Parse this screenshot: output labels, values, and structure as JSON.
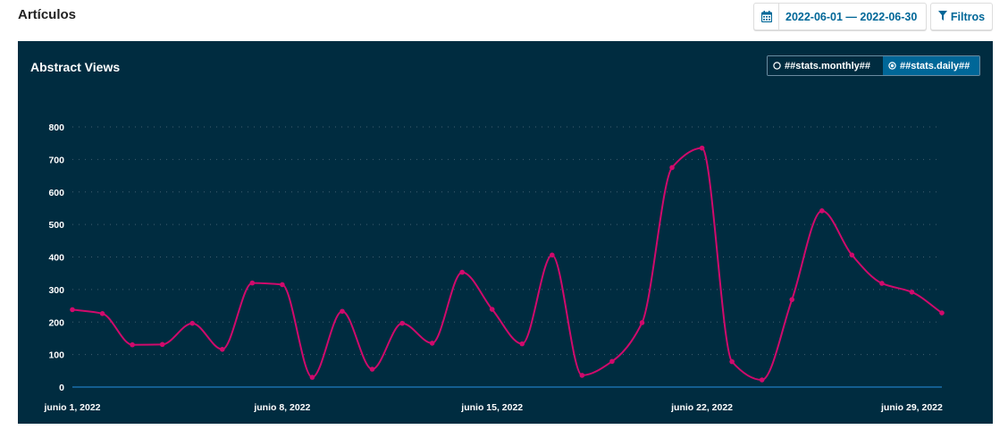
{
  "header": {
    "title": "Artículos",
    "date_range": "2022-06-01 — 2022-06-30",
    "filters_label": "Filtros"
  },
  "toggle": {
    "monthly_label": "##stats.monthly##",
    "daily_label": "##stats.daily##",
    "selected": "daily"
  },
  "colors": {
    "panel_bg": "#002c40",
    "line": "#d00a6c",
    "baseline": "#1f7cc0",
    "accent": "#006798"
  },
  "chart_data": {
    "type": "line",
    "title": "Abstract Views",
    "xlabel": "",
    "ylabel": "",
    "ylim": [
      0,
      800
    ],
    "yticks": [
      0,
      100,
      200,
      300,
      400,
      500,
      600,
      700,
      800
    ],
    "grid": true,
    "x_tick_labels": [
      {
        "day": 1,
        "label": "junio  1, 2022"
      },
      {
        "day": 8,
        "label": "junio  8, 2022"
      },
      {
        "day": 15,
        "label": "junio 15, 2022"
      },
      {
        "day": 22,
        "label": "junio 22, 2022"
      },
      {
        "day": 29,
        "label": "junio 29, 2022"
      }
    ],
    "x": [
      "2022-06-01",
      "2022-06-02",
      "2022-06-03",
      "2022-06-04",
      "2022-06-05",
      "2022-06-06",
      "2022-06-07",
      "2022-06-08",
      "2022-06-09",
      "2022-06-10",
      "2022-06-11",
      "2022-06-12",
      "2022-06-13",
      "2022-06-14",
      "2022-06-15",
      "2022-06-16",
      "2022-06-17",
      "2022-06-18",
      "2022-06-19",
      "2022-06-20",
      "2022-06-21",
      "2022-06-22",
      "2022-06-23",
      "2022-06-24",
      "2022-06-25",
      "2022-06-26",
      "2022-06-27",
      "2022-06-28",
      "2022-06-29",
      "2022-06-30"
    ],
    "series": [
      {
        "values": [
          238,
          226,
          130,
          131,
          196,
          116,
          320,
          315,
          30,
          233,
          55,
          196,
          135,
          353,
          239,
          133,
          406,
          36,
          79,
          198,
          675,
          735,
          78,
          22,
          269,
          542,
          406,
          319,
          292,
          228
        ]
      }
    ]
  }
}
